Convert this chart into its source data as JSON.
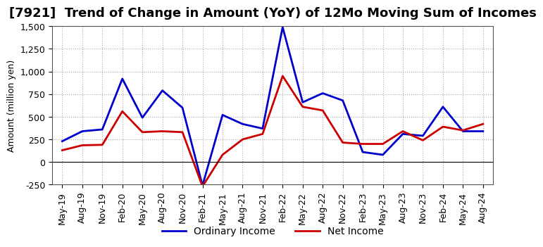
{
  "title": "[7921]  Trend of Change in Amount (YoY) of 12Mo Moving Sum of Incomes",
  "ylabel": "Amount (million yen)",
  "x_labels": [
    "May-19",
    "Aug-19",
    "Nov-19",
    "Feb-20",
    "May-20",
    "Aug-20",
    "Nov-20",
    "Feb-21",
    "May-21",
    "Aug-21",
    "Nov-21",
    "Feb-22",
    "May-22",
    "Aug-22",
    "Nov-22",
    "Feb-23",
    "May-23",
    "Aug-23",
    "Nov-23",
    "Feb-24",
    "May-24",
    "Aug-24"
  ],
  "ordinary_income": [
    230,
    340,
    360,
    920,
    490,
    790,
    600,
    -260,
    520,
    420,
    370,
    1490,
    660,
    760,
    680,
    110,
    80,
    310,
    290,
    610,
    340,
    340
  ],
  "net_income": [
    130,
    185,
    190,
    560,
    330,
    340,
    330,
    -270,
    80,
    250,
    310,
    950,
    610,
    570,
    215,
    200,
    200,
    340,
    240,
    390,
    350,
    420
  ],
  "ordinary_color": "#0000cc",
  "net_color": "#cc0000",
  "ylim": [
    -250,
    1500
  ],
  "yticks": [
    -250,
    0,
    250,
    500,
    750,
    1000,
    1250,
    1500
  ],
  "background_color": "#ffffff",
  "grid_color": "#aaaaaa",
  "title_fontsize": 13,
  "legend_fontsize": 10,
  "axis_fontsize": 9
}
